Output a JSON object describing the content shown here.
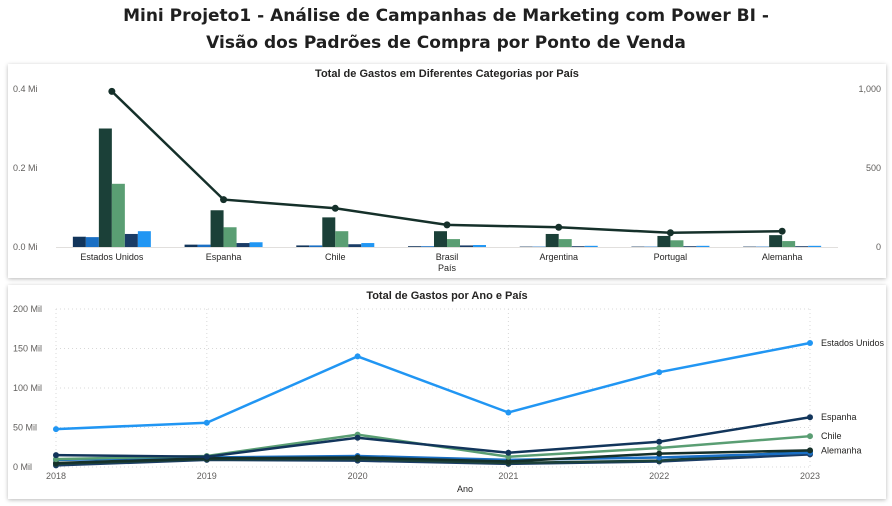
{
  "page": {
    "title_line1": "Mini Projeto1 - Análise de Campanhas de Marketing com Power BI -",
    "title_line2": "Visão dos Padrões de Compra por Ponto de Venda"
  },
  "chart_data": [
    {
      "type": "bar",
      "title": "Total de Gastos em Diferentes Categorias por País",
      "xlabel": "País",
      "ylabel": "",
      "categories": [
        "Estados Unidos",
        "Espanha",
        "Chile",
        "Brasil",
        "Argentina",
        "Portugal",
        "Alemanha"
      ],
      "yticks": [
        "0.0 Mi",
        "0.2 Mi",
        "0.4 Mi"
      ],
      "ylim": [
        0,
        0.4
      ],
      "y2ticks": [
        "0",
        "500",
        "1,000"
      ],
      "y2lim": [
        0,
        1000
      ],
      "series": [
        {
          "values": [
            0.026,
            0.006,
            0.004,
            0.002,
            0.001,
            0.001,
            0.001
          ],
          "color": "#12355b"
        },
        {
          "values": [
            0.025,
            0.006,
            0.004,
            0.002,
            0.001,
            0.001,
            0.001
          ],
          "color": "#1a6fc4"
        },
        {
          "values": [
            0.3,
            0.093,
            0.075,
            0.04,
            0.033,
            0.028,
            0.03
          ],
          "color": "#1b4038"
        },
        {
          "values": [
            0.16,
            0.05,
            0.04,
            0.02,
            0.02,
            0.017,
            0.015
          ],
          "color": "#5a9e73"
        },
        {
          "values": [
            0.033,
            0.01,
            0.007,
            0.004,
            0.002,
            0.002,
            0.002
          ],
          "color": "#1a3c66"
        },
        {
          "values": [
            0.04,
            0.012,
            0.01,
            0.005,
            0.003,
            0.003,
            0.003
          ],
          "color": "#2196f3"
        }
      ],
      "line_series": {
        "values": [
          985,
          300,
          245,
          140,
          125,
          90,
          100
        ],
        "color": "#15302a",
        "axis": "secondary"
      },
      "grid": false,
      "legend": "none"
    },
    {
      "type": "line",
      "title": "Total de Gastos por Ano e País",
      "xlabel": "Ano",
      "ylabel": "",
      "x": [
        "2018",
        "2019",
        "2020",
        "2021",
        "2022",
        "2023"
      ],
      "yticks": [
        "0 Mil",
        "50 Mil",
        "100 Mil",
        "150 Mil",
        "200 Mil"
      ],
      "ylim": [
        0,
        200
      ],
      "series": [
        {
          "name": "Estados Unidos",
          "values": [
            48,
            56,
            140,
            69,
            120,
            157
          ],
          "color": "#2196f3"
        },
        {
          "name": "Espanha",
          "values": [
            15,
            13,
            37,
            18,
            32,
            63
          ],
          "color": "#12355b"
        },
        {
          "name": "Chile",
          "values": [
            10,
            14,
            41,
            13,
            24,
            39
          ],
          "color": "#5a9e73"
        },
        {
          "name": "Alemanha",
          "values": [
            5,
            11,
            12,
            7,
            17,
            21
          ],
          "color": "#15302a"
        },
        {
          "values": [
            9,
            12,
            14,
            9,
            12,
            18
          ],
          "color": "#1a6fc4"
        },
        {
          "values": [
            4,
            10,
            10,
            5,
            8,
            20
          ],
          "color": "#1b4038"
        },
        {
          "values": [
            2,
            9,
            8,
            4,
            7,
            16
          ],
          "color": "#1a3c66"
        }
      ],
      "grid": true,
      "legend": "end-of-line labels"
    }
  ]
}
